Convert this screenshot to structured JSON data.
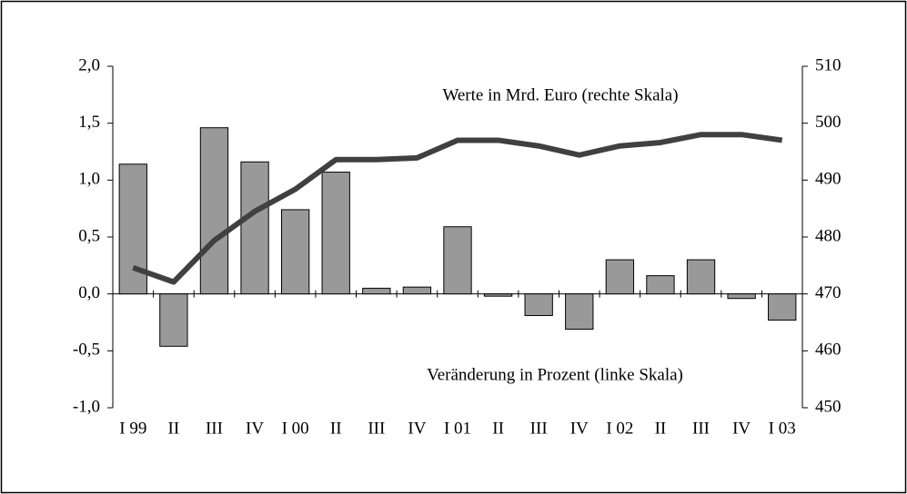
{
  "chart_data": {
    "type": "bar",
    "categories": [
      "I 99",
      "II",
      "III",
      "IV",
      "I 00",
      "II",
      "III",
      "IV",
      "I 01",
      "II",
      "III",
      "IV",
      "I 02",
      "II",
      "III",
      "IV",
      "I 03"
    ],
    "series": [
      {
        "type": "bar",
        "color": "#999999",
        "axis": "y",
        "values": [
          1.14,
          -0.46,
          1.46,
          1.16,
          0.74,
          1.07,
          0.05,
          0.06,
          0.59,
          -0.02,
          -0.19,
          -0.31,
          0.3,
          0.16,
          0.3,
          -0.04,
          -0.23
        ]
      },
      {
        "type": "line",
        "color": "#404040",
        "axis": "y2",
        "values": [
          474.6,
          472.1,
          479.4,
          484.5,
          488.4,
          493.6,
          493.6,
          493.9,
          497.0,
          497.0,
          496.0,
          494.4,
          496.0,
          496.6,
          498.0,
          498.0,
          497.0
        ]
      }
    ],
    "annotations": [
      "Werte in Mrd. Euro (rechte Skala)",
      "Veränderung in Prozent (linke Skala)"
    ],
    "ylim": [
      -1.0,
      2.0
    ],
    "yticks": [
      {
        "value": -1.0,
        "label": "-1,0"
      },
      {
        "value": -0.5,
        "label": "-0,5"
      },
      {
        "value": 0.0,
        "label": "0,0"
      },
      {
        "value": 0.5,
        "label": "0,5"
      },
      {
        "value": 1.0,
        "label": "1,0"
      },
      {
        "value": 1.5,
        "label": "1,5"
      },
      {
        "value": 2.0,
        "label": "2,0"
      }
    ],
    "y2lim": [
      450,
      510
    ],
    "y2ticks": [
      450,
      460,
      470,
      480,
      490,
      500,
      510
    ],
    "grid": false
  }
}
